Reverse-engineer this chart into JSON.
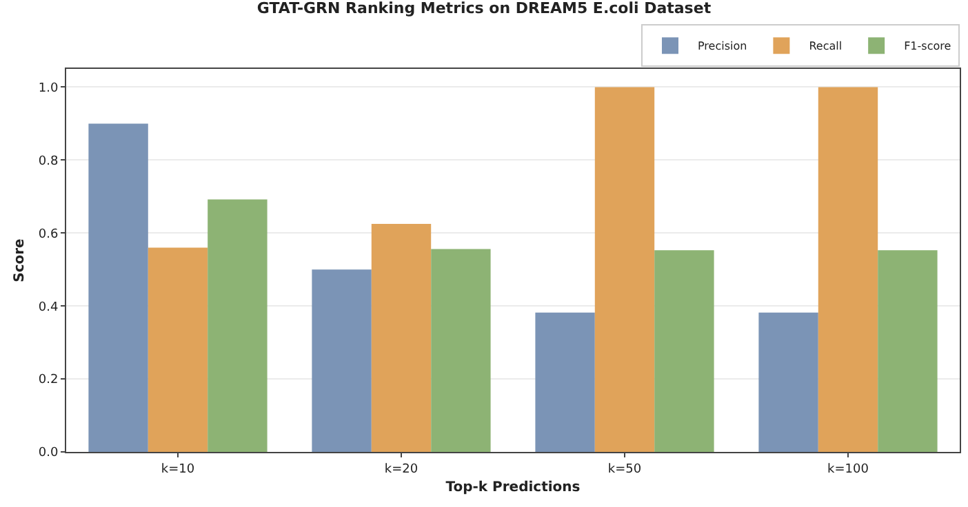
{
  "chart_data": {
    "type": "bar",
    "title": "GTAT-GRN Ranking Metrics on DREAM5 E.coli Dataset",
    "xlabel": "Top-k Predictions",
    "ylabel": "Score",
    "categories": [
      "k=10",
      "k=20",
      "k=50",
      "k=100"
    ],
    "series": [
      {
        "name": "Precision",
        "color": "#7b94b6",
        "values": [
          0.9,
          0.5,
          0.382,
          0.382
        ]
      },
      {
        "name": "Recall",
        "color": "#e0a35a",
        "values": [
          0.56,
          0.625,
          1.0,
          1.0
        ]
      },
      {
        "name": "F1-score",
        "color": "#8db374",
        "values": [
          0.692,
          0.556,
          0.553,
          0.553
        ]
      }
    ],
    "ylim": [
      0,
      1.05
    ],
    "yticks": [
      {
        "value": 0,
        "label": "0.0"
      },
      {
        "value": 0.2,
        "label": "0.2"
      },
      {
        "value": 0.4,
        "label": "0.4"
      },
      {
        "value": 0.6,
        "label": "0.6"
      },
      {
        "value": 0.8,
        "label": "0.8"
      },
      {
        "value": 1,
        "label": "1.0"
      }
    ],
    "grid": "y",
    "legend": "top right"
  }
}
